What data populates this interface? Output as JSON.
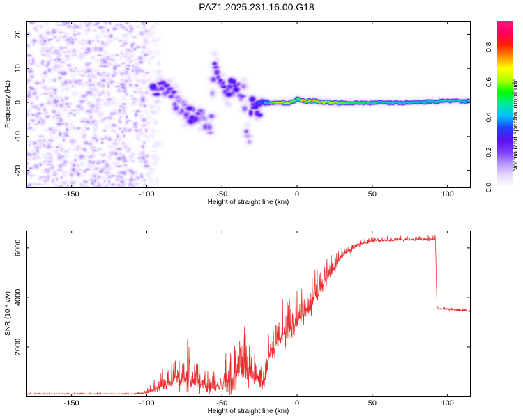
{
  "title": "PAZ1.2025.231.16.00.G18",
  "chart_data": [
    {
      "type": "heatmap",
      "name": "spectrogram",
      "xlabel": "Height of straight line (km)",
      "ylabel": "Frequency (Hz)",
      "xlim": [
        -180,
        115
      ],
      "ylim": [
        -25,
        24
      ],
      "xticks": [
        "-150",
        "-100",
        "-50",
        "0",
        "50",
        "100"
      ],
      "xtick_values": [
        -150,
        -100,
        -50,
        0,
        50,
        100
      ],
      "yticks": [
        "20",
        "10",
        "0",
        "-10",
        "-20"
      ],
      "ytick_values": [
        20,
        10,
        0,
        -10,
        -20
      ],
      "colorbar": {
        "label": "Normalized spectral amplitude",
        "range": [
          0,
          0.95
        ],
        "ticks": [
          "0.0",
          "0.2",
          "0.4",
          "0.6",
          "0.8"
        ],
        "tick_values": [
          0.0,
          0.2,
          0.4,
          0.6,
          0.8
        ],
        "colors": [
          "#ffffff",
          "#e8dcff",
          "#b896ff",
          "#7a3cff",
          "#5a10ee",
          "#2040ff",
          "#00c0ff",
          "#00e8a0",
          "#00ff00",
          "#b0ff00",
          "#ffff00",
          "#ff9000",
          "#ff2000",
          "#ff0060",
          "#ff1880"
        ]
      },
      "features": {
        "noise_region_x": [
          -180,
          -100
        ],
        "noise_amplitude": 0.12,
        "ridge": [
          {
            "x": -96,
            "f": 4,
            "a": 0.32
          },
          {
            "x": -92,
            "f": 5,
            "a": 0.3
          },
          {
            "x": -88,
            "f": 4,
            "a": 0.28
          },
          {
            "x": -84,
            "f": 2,
            "a": 0.3
          },
          {
            "x": -80,
            "f": 0,
            "a": 0.22
          },
          {
            "x": -75,
            "f": -2,
            "a": 0.22
          },
          {
            "x": -70,
            "f": -4,
            "a": 0.3
          },
          {
            "x": -66,
            "f": -4,
            "a": 0.25
          },
          {
            "x": -62,
            "f": -5,
            "a": 0.2
          },
          {
            "x": -58,
            "f": -7,
            "a": 0.18
          },
          {
            "x": -55,
            "f": 11,
            "a": 0.25
          },
          {
            "x": -52,
            "f": 6,
            "a": 0.26
          },
          {
            "x": -48,
            "f": 4,
            "a": 0.3
          },
          {
            "x": -44,
            "f": 5,
            "a": 0.3
          },
          {
            "x": -40,
            "f": 4,
            "a": 0.28
          },
          {
            "x": -36,
            "f": 3,
            "a": 0.25
          },
          {
            "x": -34,
            "f": -8,
            "a": 0.22
          },
          {
            "x": -32,
            "f": -10,
            "a": 0.22
          },
          {
            "x": -30,
            "f": 1,
            "a": 0.3
          },
          {
            "x": -26,
            "f": -2,
            "a": 0.35
          },
          {
            "x": -22,
            "f": -1,
            "a": 0.4
          },
          {
            "x": -18,
            "f": 0,
            "a": 0.55
          },
          {
            "x": -12,
            "f": 0,
            "a": 0.75
          },
          {
            "x": -6,
            "f": 0,
            "a": 0.7
          },
          {
            "x": 0,
            "f": 1,
            "a": 0.6
          },
          {
            "x": 5,
            "f": 0.5,
            "a": 0.85
          },
          {
            "x": 12,
            "f": 0.5,
            "a": 0.8
          },
          {
            "x": 20,
            "f": 0,
            "a": 0.72
          },
          {
            "x": 40,
            "f": 0,
            "a": 0.55
          },
          {
            "x": 70,
            "f": 0,
            "a": 0.5
          },
          {
            "x": 100,
            "f": 0.5,
            "a": 0.5
          },
          {
            "x": 115,
            "f": 0.5,
            "a": 0.5
          }
        ]
      }
    },
    {
      "type": "line",
      "name": "snr",
      "xlabel": "Height of straight line (km)",
      "ylabel": "SNR (10 * v/v)",
      "xlim": [
        -180,
        115
      ],
      "ylim": [
        0,
        6700
      ],
      "xticks": [
        "-150",
        "-100",
        "-50",
        "0",
        "50",
        "100"
      ],
      "xtick_values": [
        -150,
        -100,
        -50,
        0,
        50,
        100
      ],
      "yticks": [
        "2000",
        "4000",
        "6000"
      ],
      "ytick_values": [
        2000,
        4000,
        6000
      ],
      "color": "#e83030",
      "envelope": [
        {
          "x": -180,
          "base": 100,
          "noise": 60
        },
        {
          "x": -110,
          "base": 100,
          "noise": 60
        },
        {
          "x": -100,
          "base": 150,
          "noise": 150
        },
        {
          "x": -90,
          "base": 400,
          "noise": 700
        },
        {
          "x": -80,
          "base": 800,
          "noise": 1600
        },
        {
          "x": -72,
          "base": 700,
          "noise": 1900
        },
        {
          "x": -60,
          "base": 400,
          "noise": 900
        },
        {
          "x": -50,
          "base": 500,
          "noise": 900
        },
        {
          "x": -42,
          "base": 800,
          "noise": 2600
        },
        {
          "x": -36,
          "base": 1200,
          "noise": 3200
        },
        {
          "x": -28,
          "base": 700,
          "noise": 1300
        },
        {
          "x": -22,
          "base": 500,
          "noise": 700
        },
        {
          "x": -18,
          "base": 1800,
          "noise": 1500
        },
        {
          "x": -10,
          "base": 2500,
          "noise": 2000
        },
        {
          "x": 0,
          "base": 3000,
          "noise": 1800
        },
        {
          "x": 10,
          "base": 3800,
          "noise": 1400
        },
        {
          "x": 20,
          "base": 4800,
          "noise": 1000
        },
        {
          "x": 30,
          "base": 5700,
          "noise": 500
        },
        {
          "x": 40,
          "base": 6100,
          "noise": 300
        },
        {
          "x": 50,
          "base": 6300,
          "noise": 180
        },
        {
          "x": 92,
          "base": 6350,
          "noise": 180
        },
        {
          "x": 93,
          "base": 3550,
          "noise": 130
        },
        {
          "x": 115,
          "base": 3450,
          "noise": 120
        }
      ]
    }
  ]
}
